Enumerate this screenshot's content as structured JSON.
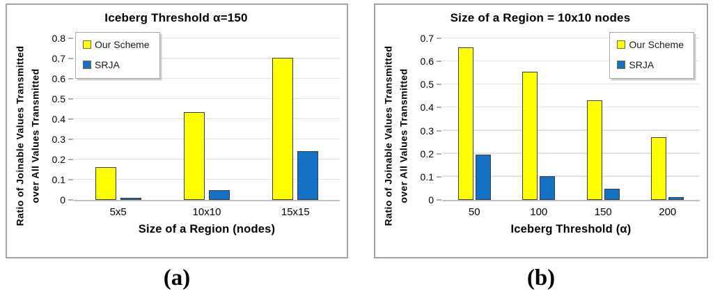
{
  "captions": {
    "a": "(a)",
    "b": "(b)"
  },
  "colors": {
    "series_our_scheme": "#FFFF00",
    "series_srja": "#1472C6",
    "bar_border": "#3A3A3A",
    "gridline": "#E2E2E2",
    "axis_line": "#BFBFBF",
    "panel_border": "#A3A3A3",
    "legend_border": "#A9A9A9"
  },
  "chart_data": [
    {
      "type": "bar",
      "title": "Iceberg Threshold α=150",
      "ylabel_line1": "Ratio of Joinable Values Transmitted",
      "ylabel_line2": "over All Values Transmitted",
      "xlabel": "Size of a Region (nodes)",
      "categories": [
        "5x5",
        "10x10",
        "15x15"
      ],
      "series": [
        {
          "name": "Our Scheme",
          "color": "#FFFF00",
          "values": [
            0.163,
            0.433,
            0.703
          ]
        },
        {
          "name": "SRJA",
          "color": "#1472C6",
          "values": [
            0.01,
            0.048,
            0.242
          ]
        }
      ],
      "ylim": [
        0,
        0.8
      ],
      "ytick_step": 0.1,
      "ytick_labels": [
        "0",
        "0.1",
        "0.2",
        "0.3",
        "0.4",
        "0.5",
        "0.6",
        "0.7",
        "0.8"
      ],
      "legend_position": "top-left",
      "grid": "horizontal"
    },
    {
      "type": "bar",
      "title": "Size of a Region = 10x10 nodes",
      "ylabel_line1": "Ratio of Joinable Values Transmitted",
      "ylabel_line2": "over All Values Transmitted",
      "xlabel": "Iceberg Threshold (α)",
      "categories": [
        "50",
        "100",
        "150",
        "200"
      ],
      "series": [
        {
          "name": "Our Scheme",
          "color": "#FFFF00",
          "values": [
            0.662,
            0.555,
            0.432,
            0.272
          ]
        },
        {
          "name": "SRJA",
          "color": "#1472C6",
          "values": [
            0.197,
            0.103,
            0.048,
            0.013
          ]
        }
      ],
      "ylim": [
        0,
        0.7
      ],
      "ytick_step": 0.1,
      "ytick_labels": [
        "0",
        "0.1",
        "0.2",
        "0.3",
        "0.4",
        "0.5",
        "0.6",
        "0.7"
      ],
      "legend_position": "top-right",
      "grid": "horizontal"
    }
  ]
}
